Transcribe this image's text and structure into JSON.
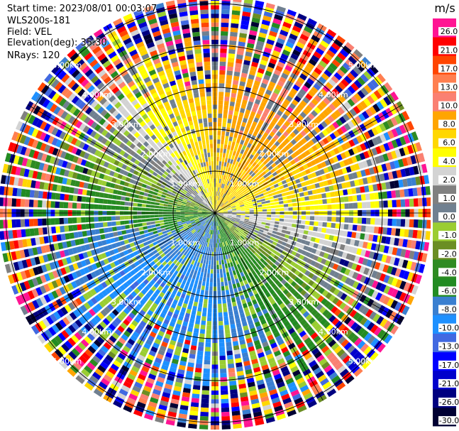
{
  "header": {
    "start_time": "Start time: 2023/08/01 00:03:07",
    "instrument": "WLS200s-181",
    "field": "Field: VEL",
    "elevation": "Elevation(deg): 35.30",
    "nrays": "NRays: 120"
  },
  "chart_data": {
    "type": "ppi-scan",
    "field": "VEL",
    "units": "m/s",
    "elevation_deg": 35.3,
    "n_rays": 120,
    "max_range_km": 5.0,
    "range_rings_km": [
      1,
      2,
      3,
      4,
      5
    ],
    "range_ring_labels": [
      "1.00km",
      "2.00km",
      "3.00km",
      "4.00km",
      "5.00km"
    ],
    "colorbar": {
      "unit_label": "m/s",
      "boundaries": [
        -30.0,
        -26.0,
        -21.0,
        -17.0,
        -13.0,
        -10.0,
        -8.0,
        -6.0,
        -4.0,
        -2.0,
        -1.0,
        0.0,
        1.0,
        2.0,
        4.0,
        6.0,
        8.0,
        10.0,
        13.0,
        17.0,
        21.0,
        26.0
      ],
      "tick_labels": [
        "-30.0",
        "-26.0",
        "-21.0",
        "-17.0",
        "-13.0",
        "-10.0",
        "-8.0",
        "-6.0",
        "-4.0",
        "-2.0",
        "-1.0",
        "0.0",
        "1.0",
        "2.0",
        "4.0",
        "6.0",
        "8.0",
        "10.0",
        "13.0",
        "17.0",
        "21.0",
        "26.0"
      ],
      "colors": [
        "#000033",
        "#000080",
        "#0000cc",
        "#0000ff",
        "#4169e1",
        "#1e90ff",
        "#3a7fd0",
        "#228b22",
        "#2e8b22",
        "#6b8e23",
        "#9acd32",
        "#708090",
        "#808080",
        "#d3d3d3",
        "#ffff00",
        "#ffd700",
        "#ffa500",
        "#fa8072",
        "#ff7f50",
        "#ff4500",
        "#ff0000",
        "#ff1493"
      ]
    },
    "velocity_pattern": {
      "amplitude_ms": 9.0,
      "max_positive_azimuth_deg": 30
    }
  }
}
